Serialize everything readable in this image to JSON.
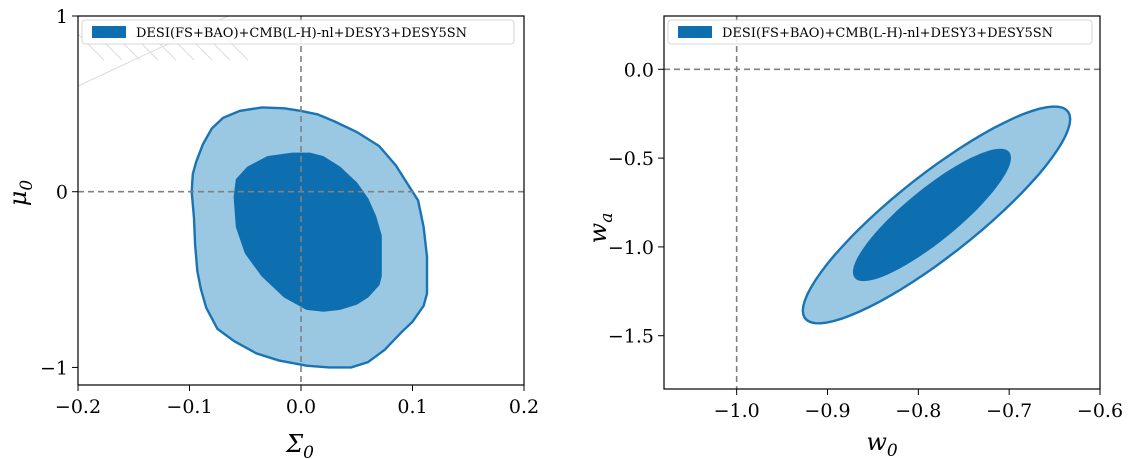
{
  "chart_data": [
    {
      "type": "contour",
      "xlabel": "Σ0",
      "ylabel": "μ0",
      "xlim": [
        -0.2,
        0.2
      ],
      "ylim": [
        -1.1,
        1.0
      ],
      "xticks": [
        "−0.2",
        "−0.1",
        "0.0",
        "0.1",
        "0.2"
      ],
      "xtick_values": [
        -0.2,
        -0.1,
        0.0,
        0.1,
        0.2
      ],
      "yticks": [
        "−1",
        "0",
        "1"
      ],
      "ytick_values": [
        -1,
        0,
        1
      ],
      "reference_lines": {
        "x": 0.0,
        "y": 0.0
      },
      "legend": {
        "label": "DESI(FS+BAO)+CMB(L-H)-nl+DESY3+DESY5SN",
        "position": "upper-left"
      },
      "excluded_region": {
        "type": "hatched",
        "corner": "upper-left"
      },
      "series": [
        {
          "level": "95%",
          "color": "#9ac8e2",
          "edge": "#1a74b4",
          "points": [
            [
              -0.098,
              0.0
            ],
            [
              -0.097,
              0.1
            ],
            [
              -0.094,
              0.17
            ],
            [
              -0.088,
              0.27
            ],
            [
              -0.08,
              0.36
            ],
            [
              -0.07,
              0.42
            ],
            [
              -0.055,
              0.46
            ],
            [
              -0.035,
              0.48
            ],
            [
              -0.015,
              0.475
            ],
            [
              0.0,
              0.46
            ],
            [
              0.015,
              0.44
            ],
            [
              0.03,
              0.4
            ],
            [
              0.05,
              0.34
            ],
            [
              0.07,
              0.26
            ],
            [
              0.085,
              0.15
            ],
            [
              0.095,
              0.05
            ],
            [
              0.105,
              -0.05
            ],
            [
              0.11,
              -0.2
            ],
            [
              0.113,
              -0.37
            ],
            [
              0.113,
              -0.58
            ],
            [
              0.11,
              -0.65
            ],
            [
              0.1,
              -0.74
            ],
            [
              0.09,
              -0.8
            ],
            [
              0.075,
              -0.9
            ],
            [
              0.06,
              -0.97
            ],
            [
              0.045,
              -1.0
            ],
            [
              0.025,
              -1.0
            ],
            [
              0.005,
              -0.99
            ],
            [
              -0.02,
              -0.96
            ],
            [
              -0.04,
              -0.92
            ],
            [
              -0.06,
              -0.85
            ],
            [
              -0.075,
              -0.78
            ],
            [
              -0.085,
              -0.66
            ],
            [
              -0.09,
              -0.55
            ],
            [
              -0.093,
              -0.45
            ],
            [
              -0.095,
              -0.3
            ],
            [
              -0.096,
              -0.15
            ]
          ]
        },
        {
          "level": "68%",
          "color": "#0e6fb0",
          "edge": "#0e6fb0",
          "points": [
            [
              -0.06,
              -0.03
            ],
            [
              -0.058,
              0.07
            ],
            [
              -0.048,
              0.14
            ],
            [
              -0.03,
              0.2
            ],
            [
              -0.008,
              0.22
            ],
            [
              0.008,
              0.22
            ],
            [
              0.02,
              0.2
            ],
            [
              0.035,
              0.14
            ],
            [
              0.05,
              0.05
            ],
            [
              0.06,
              -0.04
            ],
            [
              0.067,
              -0.14
            ],
            [
              0.072,
              -0.25
            ],
            [
              0.072,
              -0.48
            ],
            [
              0.07,
              -0.53
            ],
            [
              0.06,
              -0.6
            ],
            [
              0.05,
              -0.64
            ],
            [
              0.035,
              -0.67
            ],
            [
              0.02,
              -0.68
            ],
            [
              0.005,
              -0.67
            ],
            [
              -0.015,
              -0.6
            ],
            [
              -0.035,
              -0.48
            ],
            [
              -0.05,
              -0.35
            ],
            [
              -0.058,
              -0.2
            ]
          ]
        }
      ]
    },
    {
      "type": "contour",
      "xlabel": "w0",
      "ylabel": "wa",
      "xlim": [
        -1.08,
        -0.6
      ],
      "ylim": [
        -1.8,
        0.3
      ],
      "xticks": [
        "−1.0",
        "−0.9",
        "−0.8",
        "−0.7",
        "−0.6"
      ],
      "xtick_values": [
        -1.0,
        -0.9,
        -0.8,
        -0.7,
        -0.6
      ],
      "yticks": [
        "0.0",
        "−0.5",
        "−1.0",
        "−1.5"
      ],
      "ytick_values": [
        0.0,
        -0.5,
        -1.0,
        -1.5
      ],
      "reference_lines": {
        "x": -1.0,
        "y": 0.0
      },
      "legend": {
        "label": "DESI(FS+BAO)+CMB(L-H)-nl+DESY3+DESY5SN",
        "position": "upper-left"
      },
      "series": [
        {
          "level": "95%",
          "color": "#9ac8e2",
          "edge": "#1a74b4",
          "ellipse": {
            "cx": -0.78,
            "cy": -0.82,
            "semi_major": [
              -0.145,
              -0.58
            ],
            "semi_minor": [
              0.025,
              -0.19
            ]
          }
        },
        {
          "level": "68%",
          "color": "#0e6fb0",
          "edge": "#0e6fb0",
          "ellipse": {
            "cx": -0.785,
            "cy": -0.82,
            "semi_major": [
              -0.085,
              -0.35
            ],
            "semi_minor": [
              0.016,
              -0.12
            ]
          }
        }
      ]
    }
  ]
}
